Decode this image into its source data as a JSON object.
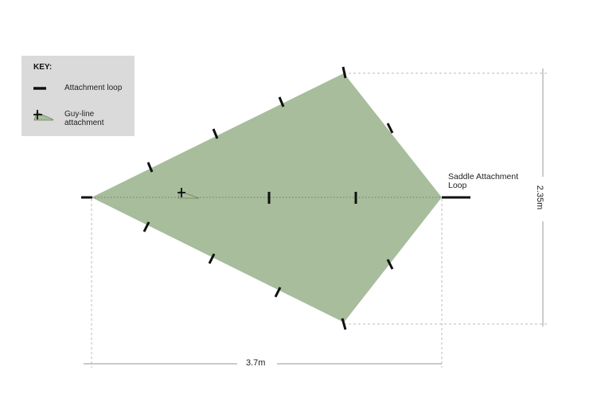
{
  "key": {
    "title": "KEY:",
    "items": [
      {
        "label": "Attachment loop",
        "icon": "attachment-loop-icon"
      },
      {
        "label": "Guy-line attachment",
        "icon": "guy-line-icon"
      }
    ]
  },
  "labels": {
    "saddle": "Saddle Attachment Loop",
    "width": "3.7m",
    "height": "2.35m"
  },
  "colors": {
    "fabric": "#a7bd9c",
    "loop": "#111111",
    "key_bg": "#dadada",
    "dim_line": "#aaaaaa"
  }
}
